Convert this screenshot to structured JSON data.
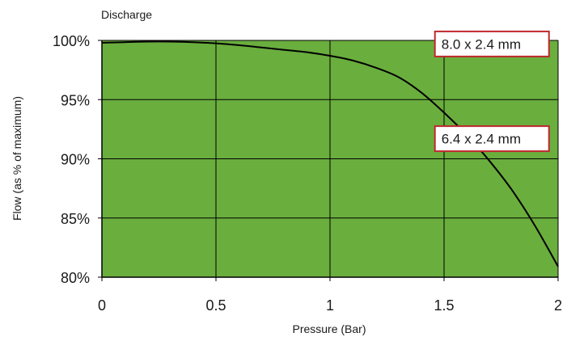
{
  "chart_data": {
    "type": "line",
    "title": "Discharge",
    "xlabel": "Pressure (Bar)",
    "ylabel": "Flow (as % of maximum)",
    "xlim": [
      0,
      2
    ],
    "ylim": [
      80,
      100
    ],
    "x_ticks": [
      0,
      0.5,
      1,
      1.5,
      2
    ],
    "x_tick_labels": [
      "0",
      "0.5",
      "1",
      "1.5",
      "2"
    ],
    "y_ticks": [
      80,
      85,
      90,
      95,
      100
    ],
    "y_tick_labels": [
      "80%",
      "85%",
      "90%",
      "95%",
      "100%"
    ],
    "grid": true,
    "legend": "none",
    "colors": {
      "plot_background": "#6aae3e",
      "line": "#000000",
      "annotation_border": "#c0282d",
      "grid": "#000000"
    },
    "series": [
      {
        "x": [
          0,
          0.1,
          0.2,
          0.3,
          0.4,
          0.5,
          0.6,
          0.7,
          0.8,
          0.9,
          1.0,
          1.1,
          1.2,
          1.3,
          1.4,
          1.5,
          1.6,
          1.7,
          1.8,
          1.9,
          2.0
        ],
        "values": [
          99.8,
          99.85,
          99.9,
          99.9,
          99.85,
          99.75,
          99.6,
          99.4,
          99.2,
          99.0,
          98.7,
          98.3,
          97.7,
          96.9,
          95.6,
          93.9,
          92.0,
          89.8,
          87.3,
          84.3,
          80.9
        ]
      }
    ],
    "annotations": [
      {
        "text": "8.0 x 2.4 mm",
        "x": 1.71,
        "y": 99.7
      },
      {
        "text": "6.4 x 2.4 mm",
        "x": 1.71,
        "y": 91.7
      }
    ]
  }
}
